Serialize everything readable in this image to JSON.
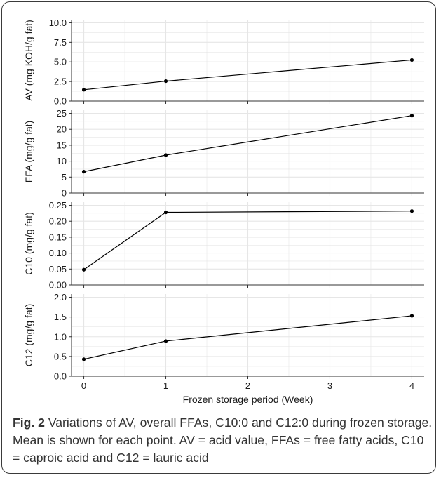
{
  "chart_data": {
    "type": "line",
    "xlabel": "Frozen storage period (Week)",
    "xlim": [
      -0.15,
      4.15
    ],
    "x_ticks": [
      0,
      1,
      2,
      3,
      4
    ],
    "grid": true,
    "panels": [
      {
        "ylabel": "AV (mg KOH/g fat)",
        "ylim": [
          0,
          10.4
        ],
        "y_ticks": [
          0.0,
          2.5,
          5.0,
          7.5,
          10.0
        ],
        "tick_decimals": 1,
        "x": [
          0,
          1,
          4
        ],
        "values": [
          1.45,
          2.55,
          5.25
        ]
      },
      {
        "ylabel": "FFA (mg/g fat)",
        "ylim": [
          0,
          26
        ],
        "y_ticks": [
          0,
          5,
          10,
          15,
          20,
          25
        ],
        "tick_decimals": 0,
        "x": [
          0,
          1,
          4
        ],
        "values": [
          6.7,
          11.9,
          24.3
        ]
      },
      {
        "ylabel": "C10 (mg/g fat)",
        "ylim": [
          0,
          0.26
        ],
        "y_ticks": [
          0.0,
          0.05,
          0.1,
          0.15,
          0.2,
          0.25
        ],
        "tick_decimals": 2,
        "x": [
          0,
          1,
          4
        ],
        "values": [
          0.048,
          0.228,
          0.232
        ]
      },
      {
        "ylabel": "C12 (mg/g fat)",
        "ylim": [
          0,
          2.08
        ],
        "y_ticks": [
          0.0,
          0.5,
          1.0,
          1.5,
          2.0
        ],
        "tick_decimals": 1,
        "x": [
          0,
          1,
          4
        ],
        "values": [
          0.43,
          0.89,
          1.53
        ]
      }
    ]
  },
  "caption": {
    "label": "Fig. 2",
    "text": " Variations of AV, overall FFAs, C10:0 and C12:0 during frozen storage. Mean is shown for each point. AV = acid value, FFAs = free fatty acids, C10 = caproic acid and C12 = lauric acid"
  },
  "colors": {
    "line": "#000000",
    "grid": "#e6e6e6",
    "axis": "#333333",
    "caption_text": "#333333"
  }
}
